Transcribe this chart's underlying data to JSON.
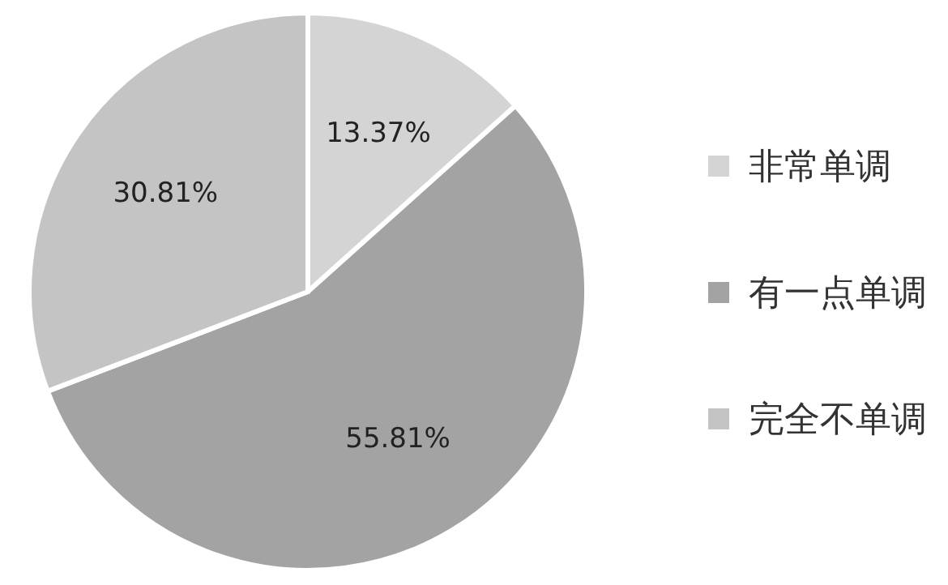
{
  "chart_data": {
    "type": "pie",
    "categories": [
      "非常单调",
      "有一点单调",
      "完全不单调"
    ],
    "values": [
      13.37,
      55.81,
      30.81
    ],
    "value_labels": [
      "13.37%",
      "55.81%",
      "30.81%"
    ],
    "colors": [
      "#d4d4d4",
      "#a3a3a3",
      "#c4c4c4"
    ],
    "legend": "right"
  }
}
